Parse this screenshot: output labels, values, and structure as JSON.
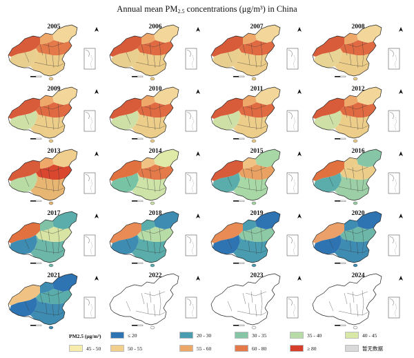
{
  "title": {
    "pre": "Annual mean PM",
    "sub": "2.5",
    "post": " concentrations (μg/m³) in China"
  },
  "panels": [
    {
      "year": "2005",
      "has_data": true,
      "palette": {
        "west": "#d85b3a",
        "north": "#eda86a",
        "east": "#e47a49",
        "south": "#eccd8a",
        "tibet": "#e9cf8f",
        "ne": "#f3d79a"
      }
    },
    {
      "year": "2006",
      "has_data": true,
      "palette": {
        "west": "#d85b3a",
        "north": "#eda86a",
        "east": "#e06b42",
        "south": "#eccd8a",
        "tibet": "#e9cf8f",
        "ne": "#f3d79a"
      }
    },
    {
      "year": "2007",
      "has_data": true,
      "palette": {
        "west": "#d85b3a",
        "north": "#eda86a",
        "east": "#e06b42",
        "south": "#eccd8a",
        "tibet": "#e9cf8f",
        "ne": "#f3d79a"
      }
    },
    {
      "year": "2008",
      "has_data": true,
      "palette": {
        "west": "#d85b3a",
        "north": "#eda86a",
        "east": "#e06b42",
        "south": "#eccd8a",
        "tibet": "#e8d596",
        "ne": "#f3d79a"
      }
    },
    {
      "year": "2009",
      "has_data": true,
      "palette": {
        "west": "#d85b3a",
        "north": "#eda86a",
        "east": "#e06b42",
        "south": "#eccd8a",
        "tibet": "#cfe0a6",
        "ne": "#f3d79a"
      }
    },
    {
      "year": "2010",
      "has_data": true,
      "palette": {
        "west": "#d85b3a",
        "north": "#eda86a",
        "east": "#e06b42",
        "south": "#eccd8a",
        "tibet": "#cfe0a6",
        "ne": "#f3d79a"
      }
    },
    {
      "year": "2011",
      "has_data": true,
      "palette": {
        "west": "#d85b3a",
        "north": "#eda86a",
        "east": "#e06b42",
        "south": "#eccd8a",
        "tibet": "#cfe0a6",
        "ne": "#f3d79a"
      }
    },
    {
      "year": "2012",
      "has_data": true,
      "palette": {
        "west": "#d85b3a",
        "north": "#eda86a",
        "east": "#e06b42",
        "south": "#eccd8a",
        "tibet": "#cfe0a6",
        "ne": "#f3d79a"
      }
    },
    {
      "year": "2013",
      "has_data": true,
      "palette": {
        "west": "#d85b3a",
        "north": "#eda86a",
        "east": "#d9472f",
        "south": "#e7b672",
        "tibet": "#b9dca5",
        "ne": "#f0cf8e"
      }
    },
    {
      "year": "2014",
      "has_data": true,
      "palette": {
        "west": "#e1713f",
        "north": "#f0c384",
        "east": "#e47a49",
        "south": "#cde3a8",
        "tibet": "#77c3a4",
        "ne": "#dfeaa9"
      }
    },
    {
      "year": "2015",
      "has_data": true,
      "palette": {
        "west": "#d85b3a",
        "north": "#f0c384",
        "east": "#e9a263",
        "south": "#a9d8a7",
        "tibet": "#5aadaa",
        "ne": "#a9d8a7"
      }
    },
    {
      "year": "2016",
      "has_data": true,
      "palette": {
        "west": "#e1713f",
        "north": "#eccd8a",
        "east": "#eccd8a",
        "south": "#9ccfa6",
        "tibet": "#5aadaa",
        "ne": "#86c6a6"
      }
    },
    {
      "year": "2017",
      "has_data": true,
      "palette": {
        "west": "#e1713f",
        "north": "#7fc2a6",
        "east": "#d8e4a4",
        "south": "#6db7a8",
        "tibet": "#3f8cb3",
        "ne": "#5aadaa"
      }
    },
    {
      "year": "2018",
      "has_data": true,
      "palette": {
        "west": "#e98b55",
        "north": "#5aadaa",
        "east": "#b7dca6",
        "south": "#5aadaa",
        "tibet": "#3f8cb3",
        "ne": "#3f8cb3"
      }
    },
    {
      "year": "2019",
      "has_data": true,
      "palette": {
        "west": "#e98b55",
        "north": "#4a9db0",
        "east": "#8fcaa6",
        "south": "#4a9db0",
        "tibet": "#2f74b2",
        "ne": "#2f74b2"
      }
    },
    {
      "year": "2020",
      "has_data": true,
      "palette": {
        "west": "#eba06a",
        "north": "#3f8cb3",
        "east": "#6db7a8",
        "south": "#3f8cb3",
        "tibet": "#2f74b2",
        "ne": "#2f74b2"
      }
    },
    {
      "year": "2021",
      "has_data": true,
      "palette": {
        "west": "#f0c384",
        "north": "#3f8cb3",
        "east": "#5aadaa",
        "south": "#3f8cb3",
        "tibet": "#2f74b2",
        "ne": "#2f74b2"
      }
    },
    {
      "year": "2022",
      "has_data": false
    },
    {
      "year": "2023",
      "has_data": false
    },
    {
      "year": "2024",
      "has_data": false
    }
  ],
  "legend": {
    "title": "PM2.5 (μg/m³)",
    "items": [
      {
        "label": "≤ 20",
        "color": "#2f74b2"
      },
      {
        "label": "20 - 30",
        "color": "#4a9db0"
      },
      {
        "label": "30 - 35",
        "color": "#86c6a6"
      },
      {
        "label": "35 - 40",
        "color": "#b7dca6"
      },
      {
        "label": "40 - 45",
        "color": "#d8e8a6"
      },
      {
        "label": "45 - 50",
        "color": "#f6ecab"
      },
      {
        "label": "50 - 55",
        "color": "#f1cf8c"
      },
      {
        "label": "55 - 60",
        "color": "#eca868"
      },
      {
        "label": "60 - 80",
        "color": "#e47a49"
      },
      {
        "label": "≥ 80",
        "color": "#d43e2a"
      },
      {
        "label": "暂无数据",
        "color": "#d9d9d9"
      }
    ]
  }
}
